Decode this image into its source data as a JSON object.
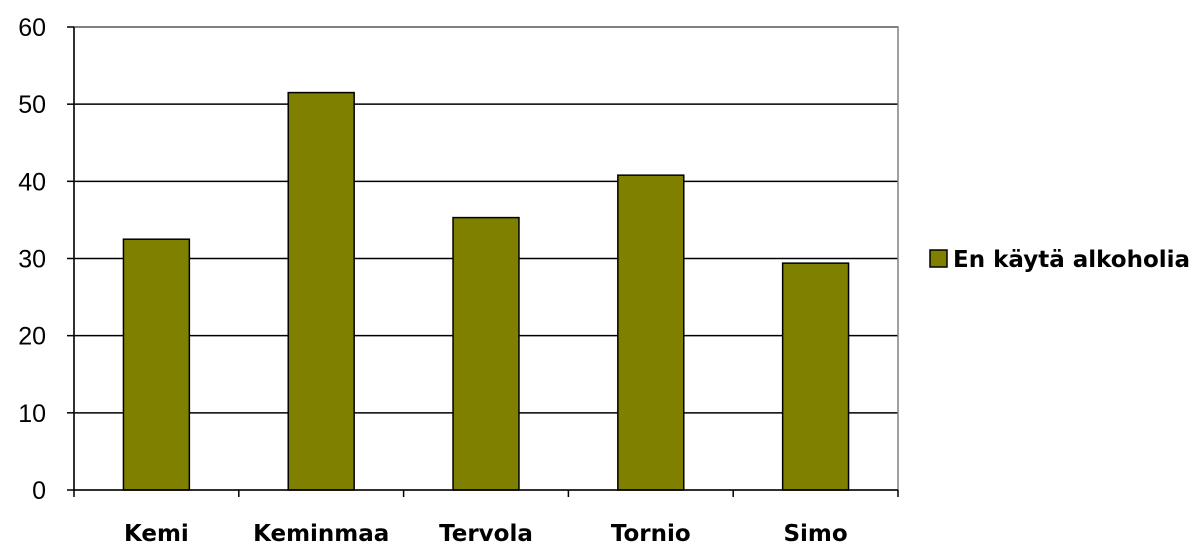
{
  "chart_data": {
    "type": "bar",
    "categories": [
      "Kemi",
      "Keminmaa",
      "Tervola",
      "Tornio",
      "Simo"
    ],
    "series": [
      {
        "name": "En käytä alkoholia",
        "values": [
          32.5,
          51.5,
          35.3,
          40.8,
          29.4
        ],
        "color": "#808000"
      }
    ],
    "ylim": [
      0,
      60
    ],
    "yticks": [
      0,
      10,
      20,
      30,
      40,
      50,
      60
    ],
    "grid": true,
    "legend_position": "right"
  }
}
